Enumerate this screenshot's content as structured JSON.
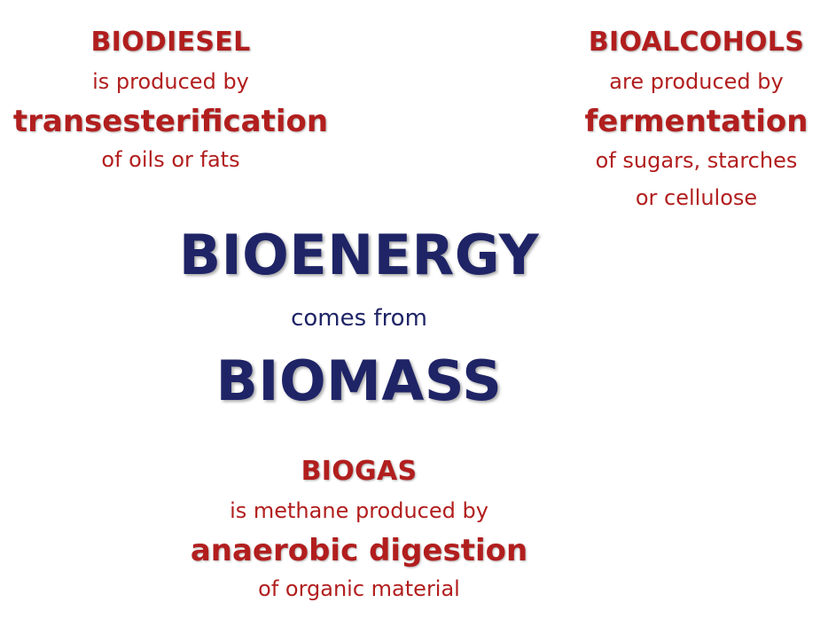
{
  "biodiesel": {
    "title": "BIODIESEL",
    "line2": "is produced by",
    "process": "transesterification",
    "source": "of oils or fats"
  },
  "bioalcohols": {
    "title": "BIOALCOHOLS",
    "line2": "are produced by",
    "process": "fermentation",
    "source_line1": "of sugars, starches",
    "source_line2": "or cellulose"
  },
  "center": {
    "title": "BIOENERGY",
    "connector": "comes from",
    "subject": "BIOMASS"
  },
  "biogas": {
    "title": "BIOGAS",
    "line2": "is methane produced by",
    "process": "anaerobic digestion",
    "source": "of organic material"
  },
  "colors": {
    "red": "#b21e1e",
    "navy": "#1f2466"
  }
}
